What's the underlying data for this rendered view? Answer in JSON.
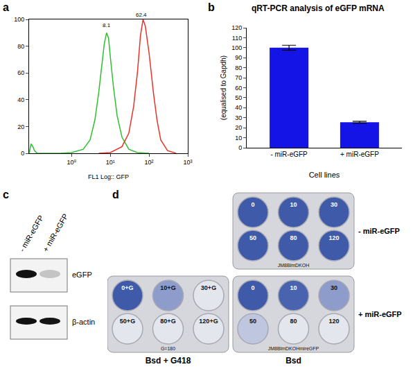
{
  "chart_data": [
    {
      "type": "line",
      "xlabel": "FL1 Log:: GFP",
      "log": "x",
      "xlim": [
        0.08,
        1000
      ],
      "xticks": [
        {
          "value": 1,
          "label": "10⁰"
        },
        {
          "value": 10,
          "label": "10¹"
        },
        {
          "value": 100,
          "label": "10²"
        },
        {
          "value": 1000,
          "label": "10³"
        }
      ],
      "ylim": [
        0,
        100
      ],
      "yticks": [
        0,
        20,
        40,
        60,
        80,
        100
      ],
      "grid": false,
      "series": [
        {
          "color": "#2fbf2f",
          "x": [
            0.08,
            0.09,
            0.1,
            0.11,
            0.13,
            0.2,
            0.5,
            1,
            2,
            3,
            4,
            5,
            6,
            7,
            8,
            9,
            10,
            12,
            15,
            20,
            30,
            50,
            100
          ],
          "values": [
            0,
            7,
            5,
            2,
            0,
            0,
            0,
            0.5,
            3,
            10,
            25,
            45,
            65,
            82,
            90,
            86,
            72,
            50,
            28,
            12,
            3,
            0.5,
            0
          ]
        },
        {
          "color": "#e8332a",
          "x": [
            5,
            10,
            20,
            30,
            40,
            50,
            60,
            70,
            80,
            100,
            130,
            160,
            200,
            300,
            500
          ],
          "values": [
            0,
            0.5,
            5,
            15,
            35,
            60,
            88,
            100,
            95,
            75,
            45,
            25,
            10,
            2,
            0
          ]
        }
      ],
      "annotations": [
        {
          "x": 8.1,
          "y": 92,
          "text": "8.1"
        },
        {
          "x": 62.4,
          "y": 100,
          "text": "62.4"
        }
      ]
    },
    {
      "type": "bar",
      "title": "qRT-PCR analysis of eGFP mRNA",
      "ylabel": "(equalised to Gapdh)",
      "xlabel": "Cell lines",
      "categories": [
        "- miR-eGFP",
        "+ miR-eGFP"
      ],
      "values": [
        100,
        25.5
      ],
      "errors": [
        2.5,
        1
      ],
      "color": "#1414e6",
      "ylim": [
        0,
        120
      ],
      "yticks": [
        0,
        10,
        20,
        30,
        40,
        50,
        60,
        70,
        80,
        90,
        100,
        110,
        120
      ],
      "grid": false
    }
  ],
  "panel_labels": [
    "a",
    "b",
    "c",
    "d"
  ],
  "blot": {
    "lanes": [
      "- miR-eGFP",
      "+ miR-eGFP"
    ],
    "rows": [
      {
        "label": "eGFP",
        "colors": [
          "#111111",
          "#c4c4c4"
        ]
      },
      {
        "label": "β-actin",
        "colors": [
          "#111111",
          "#151515"
        ]
      }
    ]
  },
  "plates": [
    {
      "wells": [
        "0",
        "10",
        "30",
        "50",
        "80",
        "120"
      ],
      "colors": [
        "#3f5aa8",
        "#3f5aa8",
        "#3f5aa8",
        "#3f5aa8",
        "#3f5aa8",
        "#3f5aa8"
      ],
      "inner_text": "JM8BlmDKOH",
      "side_label": "- miR-eGFP"
    },
    {
      "wells": [
        "0+G",
        "10+G",
        "30+G",
        "50+G",
        "80+G",
        "120+G"
      ],
      "colors": [
        "#3f5aa8",
        "#8e9ccc",
        "#e4e6ee",
        "#e4e6ee",
        "#e4e6ee",
        "#e4e6ee"
      ],
      "inner_text": "G=180",
      "bottom_label": "Bsd + G418"
    },
    {
      "wells": [
        "0",
        "10",
        "30",
        "50",
        "80",
        "120"
      ],
      "colors": [
        "#3f5aa8",
        "#4a63ae",
        "#8e9ccc",
        "#bfc6e0",
        "#e4e6ee",
        "#e4e6ee"
      ],
      "inner_text": "JM8BlmDKOHmireGFP",
      "bottom_label": "Bsd",
      "side_label": "+ miR-eGFP"
    }
  ]
}
